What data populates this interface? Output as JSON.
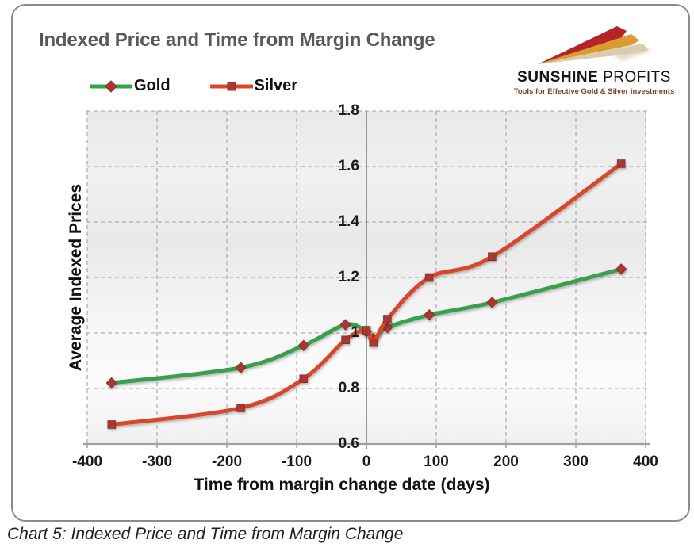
{
  "title": "Indexed Price and Time from Margin Change",
  "caption": "Chart 5: Indexed Price and Time from Margin Change",
  "logo": {
    "name_primary": "SUNSHINE",
    "name_secondary": "PROFITS",
    "tagline": "Tools for Effective Gold & Silver investments"
  },
  "legend": [
    {
      "label": "Gold"
    },
    {
      "label": "Silver"
    }
  ],
  "axes": {
    "x_title": "Time from margin change date (days)",
    "y_title": "Average Indexed Prices",
    "x_ticks": [
      -400,
      -300,
      -200,
      -100,
      0,
      100,
      200,
      300,
      400
    ],
    "y_ticks": [
      "1.8",
      "1.6",
      "1.4",
      "1.2",
      "1",
      "0.8",
      "0.6"
    ]
  },
  "colors": {
    "gold_line": "#36A24B",
    "silver_line": "#D9472A",
    "marker_fill": "#A93834",
    "marker_stroke": "#8E2F2C",
    "grid": "#B0B0B0",
    "axis": "#A0A0A0",
    "center_axis": "#808080",
    "title_text": "#595959",
    "tagline_text": "#7A4030"
  },
  "chart_data": {
    "type": "line",
    "title": "Indexed Price and Time from Margin Change",
    "xlabel": "Time from margin change date (days)",
    "ylabel": "Average Indexed Prices",
    "xlim": [
      -400,
      400
    ],
    "ylim": [
      0.6,
      1.8
    ],
    "grid": true,
    "legend_position": "top-left",
    "x": [
      -365,
      -180,
      -90,
      -30,
      0,
      10,
      30,
      90,
      180,
      365
    ],
    "series": [
      {
        "name": "Gold",
        "color_key": "gold_line",
        "marker": "diamond",
        "values": [
          0.82,
          0.875,
          0.955,
          1.03,
          1.005,
          0.98,
          1.02,
          1.065,
          1.11,
          1.23
        ]
      },
      {
        "name": "Silver",
        "color_key": "silver_line",
        "marker": "square",
        "values": [
          0.67,
          0.73,
          0.835,
          0.975,
          1.01,
          0.965,
          1.05,
          1.2,
          1.275,
          1.61
        ]
      }
    ]
  }
}
